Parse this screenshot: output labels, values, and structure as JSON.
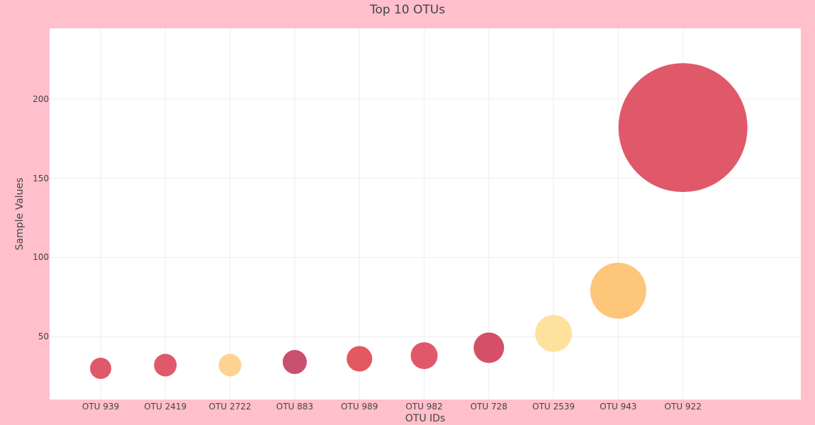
{
  "chart_data": {
    "type": "scatter",
    "subtype": "bubble",
    "title": "Top 10 OTUs",
    "xlabel": "OTU IDs",
    "ylabel": "Sample Values",
    "categories": [
      "OTU 939",
      "OTU 2419",
      "OTU 2722",
      "OTU 883",
      "OTU 989",
      "OTU 982",
      "OTU 728",
      "OTU 2539",
      "OTU 943",
      "OTU 922"
    ],
    "values": [
      30,
      32,
      32,
      34,
      36,
      38,
      43,
      52,
      79,
      182
    ],
    "marker_sizes": [
      30,
      32,
      32,
      34,
      36,
      38,
      43,
      52,
      79,
      182
    ],
    "marker_colors": [
      "#d9354a",
      "#d9354a",
      "#fec97a",
      "#c0284f",
      "#dc3440",
      "#d9354a",
      "#cc2a44",
      "#fedb88",
      "#feba5a",
      "#d9354a"
    ],
    "yticks": [
      50,
      100,
      150,
      200
    ],
    "ylim": [
      10.3,
      244.7
    ],
    "grid": true,
    "legend": false,
    "background": "#ffc0cb",
    "plot_background": "#ffffff"
  }
}
